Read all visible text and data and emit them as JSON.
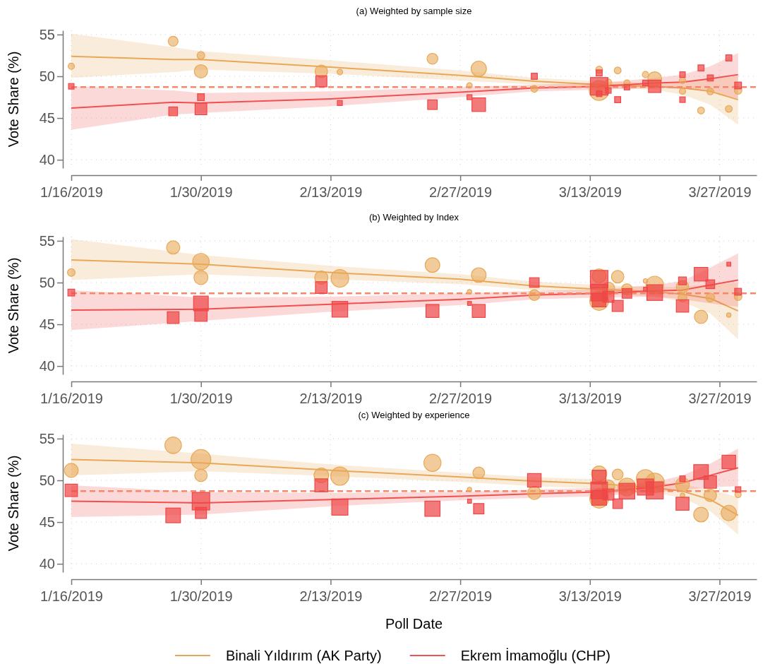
{
  "chart_data": [
    {
      "type": "line",
      "title": "(a) Weighted by sample size",
      "ylabel": "Vote Share (%)",
      "xlim": [
        "2019-01-16",
        "2019-03-31"
      ],
      "ylim": [
        39,
        55.5
      ],
      "xticks": [
        {
          "value": "2019-01-16",
          "label": "1/16/2019"
        },
        {
          "value": "2019-01-30",
          "label": "1/30/2019"
        },
        {
          "value": "2019-02-13",
          "label": "2/13/2019"
        },
        {
          "value": "2019-02-27",
          "label": "2/27/2019"
        },
        {
          "value": "2019-03-13",
          "label": "3/13/2019"
        },
        {
          "value": "2019-03-27",
          "label": "3/27/2019"
        }
      ],
      "yticks": [
        40,
        45,
        50,
        55
      ],
      "grid": true,
      "ref_lines": [
        {
          "axis": "y",
          "value": 48.7,
          "color": "#f5876a",
          "line_style": "dashed"
        }
      ],
      "series": [
        {
          "type": "line",
          "color": "#e8a857",
          "x": [
            "2019-01-16",
            "2019-01-27",
            "2019-01-30",
            "2019-02-13",
            "2019-02-27",
            "2019-03-07",
            "2019-03-14",
            "2019-03-20",
            "2019-03-23",
            "2019-03-26",
            "2019-03-29"
          ],
          "values": [
            52.4,
            52.0,
            52.0,
            51.1,
            50.1,
            49.4,
            49.0,
            48.8,
            48.6,
            48.2,
            47.2
          ],
          "lower": [
            49.8,
            50.5,
            50.8,
            50.3,
            49.5,
            49.0,
            48.6,
            48.4,
            47.8,
            46.6,
            44.2
          ],
          "upper": [
            55.1,
            53.5,
            53.0,
            51.9,
            50.7,
            49.8,
            49.4,
            49.2,
            49.3,
            49.6,
            50.2
          ]
        },
        {
          "type": "line",
          "color": "#f25050",
          "x": [
            "2019-01-16",
            "2019-01-27",
            "2019-01-30",
            "2019-02-13",
            "2019-02-27",
            "2019-03-07",
            "2019-03-14",
            "2019-03-20",
            "2019-03-23",
            "2019-03-26",
            "2019-03-29"
          ],
          "values": [
            46.2,
            46.9,
            46.8,
            47.3,
            48.1,
            48.6,
            48.8,
            49.2,
            49.3,
            49.7,
            50.2
          ],
          "lower": [
            43.6,
            45.4,
            45.6,
            46.4,
            47.5,
            48.2,
            48.4,
            48.6,
            48.5,
            48.3,
            47.3
          ],
          "upper": [
            48.8,
            48.3,
            48.0,
            48.2,
            48.7,
            49.0,
            49.2,
            49.8,
            50.2,
            51.2,
            52.8
          ]
        },
        {
          "type": "bubble",
          "marker": "circle",
          "color": "#e8a857",
          "x": [
            "2019-01-16",
            "2019-01-27",
            "2019-01-30",
            "2019-01-30",
            "2019-02-12",
            "2019-02-14",
            "2019-02-24",
            "2019-02-28",
            "2019-03-01",
            "2019-03-07",
            "2019-03-14",
            "2019-03-14",
            "2019-03-14",
            "2019-03-15",
            "2019-03-16",
            "2019-03-17",
            "2019-03-19",
            "2019-03-20",
            "2019-03-23",
            "2019-03-23",
            "2019-03-25",
            "2019-03-26",
            "2019-03-28",
            "2019-03-29"
          ],
          "values": [
            51.2,
            54.2,
            52.5,
            50.6,
            50.6,
            50.5,
            52.1,
            48.9,
            50.9,
            48.5,
            48.3,
            50.8,
            48.0,
            49.3,
            50.7,
            49.2,
            50.2,
            49.7,
            49.5,
            48.2,
            45.9,
            48.2,
            46.1,
            48.3
          ],
          "sizes": [
            0.1,
            0.25,
            0.15,
            0.45,
            0.4,
            0.08,
            0.3,
            0.08,
            0.6,
            0.12,
            1,
            0.12,
            0.1,
            0.1,
            0.12,
            0.1,
            0.1,
            0.5,
            0.1,
            0.1,
            0.12,
            0.12,
            0.12,
            0.15
          ]
        },
        {
          "type": "bubble",
          "marker": "square",
          "color": "#ee4646",
          "x": [
            "2019-01-16",
            "2019-01-27",
            "2019-01-30",
            "2019-01-30",
            "2019-02-12",
            "2019-02-14",
            "2019-02-24",
            "2019-02-28",
            "2019-03-01",
            "2019-03-07",
            "2019-03-14",
            "2019-03-14",
            "2019-03-14",
            "2019-03-15",
            "2019-03-16",
            "2019-03-17",
            "2019-03-19",
            "2019-03-20",
            "2019-03-23",
            "2019-03-23",
            "2019-03-25",
            "2019-03-26",
            "2019-03-28",
            "2019-03-29"
          ],
          "values": [
            48.8,
            45.8,
            47.5,
            46.1,
            49.4,
            46.8,
            46.6,
            47.5,
            46.6,
            50.0,
            48.8,
            50.4,
            47.9,
            48.3,
            47.2,
            48.7,
            49.2,
            48.8,
            50.2,
            47.2,
            51.0,
            49.8,
            52.2,
            48.9
          ],
          "sizes": [
            0.1,
            0.25,
            0.15,
            0.45,
            0.4,
            0.08,
            0.3,
            0.08,
            0.6,
            0.12,
            1,
            0.12,
            0.1,
            0.1,
            0.12,
            0.1,
            0.1,
            0.5,
            0.1,
            0.1,
            0.12,
            0.12,
            0.12,
            0.15
          ]
        }
      ]
    },
    {
      "type": "line",
      "title": "(b) Weighted by Index",
      "ylabel": "Vote Share (%)",
      "xlim": [
        "2019-01-16",
        "2019-03-31"
      ],
      "ylim": [
        39,
        55.5
      ],
      "xticks": [
        {
          "value": "2019-01-16",
          "label": "1/16/2019"
        },
        {
          "value": "2019-01-30",
          "label": "1/30/2019"
        },
        {
          "value": "2019-02-13",
          "label": "2/13/2019"
        },
        {
          "value": "2019-02-27",
          "label": "2/27/2019"
        },
        {
          "value": "2019-03-13",
          "label": "3/13/2019"
        },
        {
          "value": "2019-03-27",
          "label": "3/27/2019"
        }
      ],
      "yticks": [
        40,
        45,
        50,
        55
      ],
      "grid": true,
      "ref_lines": [
        {
          "axis": "y",
          "value": 48.7,
          "color": "#f5876a",
          "line_style": "dashed"
        }
      ],
      "series": [
        {
          "type": "line",
          "color": "#e8a857",
          "x": [
            "2019-01-16",
            "2019-01-30",
            "2019-02-13",
            "2019-02-27",
            "2019-03-07",
            "2019-03-14",
            "2019-03-20",
            "2019-03-23",
            "2019-03-26",
            "2019-03-29"
          ],
          "values": [
            52.7,
            52.2,
            51.2,
            50.4,
            49.6,
            49.2,
            48.9,
            48.6,
            48.1,
            46.6
          ],
          "lower": [
            50.3,
            51.0,
            50.4,
            49.8,
            49.1,
            48.7,
            48.3,
            47.7,
            46.3,
            43.2
          ],
          "upper": [
            55.2,
            53.3,
            52.0,
            51.0,
            50.1,
            49.7,
            49.5,
            49.5,
            49.8,
            50.0
          ]
        },
        {
          "type": "line",
          "color": "#f25050",
          "x": [
            "2019-01-16",
            "2019-01-30",
            "2019-02-13",
            "2019-02-27",
            "2019-03-07",
            "2019-03-14",
            "2019-03-20",
            "2019-03-23",
            "2019-03-26",
            "2019-03-29"
          ],
          "values": [
            46.7,
            46.8,
            47.4,
            48.0,
            48.5,
            48.7,
            49.0,
            49.1,
            49.7,
            50.3
          ],
          "lower": [
            44.3,
            45.4,
            46.5,
            47.3,
            48.0,
            48.2,
            48.3,
            48.0,
            47.5,
            47.1
          ],
          "upper": [
            49.1,
            48.2,
            48.3,
            48.7,
            49.0,
            49.2,
            49.7,
            50.2,
            51.8,
            53.5
          ]
        },
        {
          "type": "bubble",
          "marker": "circle",
          "color": "#e8a857",
          "x": [
            "2019-01-16",
            "2019-01-27",
            "2019-01-30",
            "2019-01-30",
            "2019-02-12",
            "2019-02-14",
            "2019-02-24",
            "2019-02-28",
            "2019-03-01",
            "2019-03-07",
            "2019-03-14",
            "2019-03-14",
            "2019-03-14",
            "2019-03-15",
            "2019-03-16",
            "2019-03-17",
            "2019-03-19",
            "2019-03-20",
            "2019-03-23",
            "2019-03-23",
            "2019-03-25",
            "2019-03-26",
            "2019-03-28",
            "2019-03-29"
          ],
          "values": [
            51.2,
            54.2,
            52.5,
            50.6,
            50.6,
            50.5,
            52.1,
            48.9,
            50.9,
            48.5,
            47.8,
            50.8,
            48.0,
            49.3,
            50.7,
            49.2,
            50.2,
            49.7,
            49.5,
            48.2,
            45.9,
            48.2,
            46.1,
            48.3
          ],
          "sizes": [
            0.15,
            0.45,
            0.7,
            0.5,
            0.45,
            0.8,
            0.55,
            0.05,
            0.55,
            0.3,
            0.9,
            0.5,
            0.6,
            0.4,
            0.4,
            0.3,
            0.05,
            0.8,
            0.4,
            0.2,
            0.45,
            0.2,
            0.05,
            0.15
          ]
        },
        {
          "type": "bubble",
          "marker": "square",
          "color": "#ee4646",
          "x": [
            "2019-01-16",
            "2019-01-27",
            "2019-01-30",
            "2019-01-30",
            "2019-02-12",
            "2019-02-14",
            "2019-02-24",
            "2019-02-28",
            "2019-03-01",
            "2019-03-07",
            "2019-03-14",
            "2019-03-14",
            "2019-03-14",
            "2019-03-15",
            "2019-03-16",
            "2019-03-17",
            "2019-03-19",
            "2019-03-20",
            "2019-03-23",
            "2019-03-23",
            "2019-03-25",
            "2019-03-26",
            "2019-03-28",
            "2019-03-29"
          ],
          "values": [
            48.8,
            45.8,
            47.5,
            46.1,
            49.4,
            46.8,
            46.6,
            47.5,
            46.6,
            50.0,
            48.8,
            50.4,
            47.9,
            48.3,
            47.2,
            48.7,
            49.2,
            48.8,
            50.2,
            47.2,
            51.0,
            49.8,
            52.2,
            48.9
          ],
          "sizes": [
            0.15,
            0.45,
            0.7,
            0.5,
            0.45,
            0.8,
            0.55,
            0.05,
            0.55,
            0.3,
            0.9,
            1,
            0.6,
            0.4,
            0.4,
            0.3,
            0.05,
            0.8,
            0.2,
            0.5,
            0.6,
            0.25,
            0.05,
            0.15
          ]
        }
      ]
    },
    {
      "type": "line",
      "title": "(c) Weighted by experience",
      "xlabel": "Poll Date",
      "ylabel": "Vote Share (%)",
      "legend": "bottom",
      "xlim": [
        "2019-01-16",
        "2019-03-31"
      ],
      "ylim": [
        39,
        55.5
      ],
      "xticks": [
        {
          "value": "2019-01-16",
          "label": "1/16/2019"
        },
        {
          "value": "2019-01-30",
          "label": "1/30/2019"
        },
        {
          "value": "2019-02-13",
          "label": "2/13/2019"
        },
        {
          "value": "2019-02-27",
          "label": "2/27/2019"
        },
        {
          "value": "2019-03-13",
          "label": "3/13/2019"
        },
        {
          "value": "2019-03-27",
          "label": "3/27/2019"
        }
      ],
      "yticks": [
        40,
        45,
        50,
        55
      ],
      "grid": true,
      "ref_lines": [
        {
          "axis": "y",
          "value": 48.7,
          "color": "#f5876a",
          "line_style": "dashed"
        }
      ],
      "series": [
        {
          "type": "line",
          "name": "Binali Yıldırım (AK Party)",
          "color": "#e8a857",
          "x": [
            "2019-01-16",
            "2019-01-30",
            "2019-02-13",
            "2019-02-27",
            "2019-03-07",
            "2019-03-14",
            "2019-03-20",
            "2019-03-23",
            "2019-03-26",
            "2019-03-29"
          ],
          "values": [
            52.5,
            52.1,
            51.2,
            50.4,
            49.9,
            49.6,
            49.1,
            48.7,
            47.7,
            45.8
          ],
          "lower": [
            50.6,
            51.1,
            50.5,
            49.8,
            49.3,
            49.0,
            48.5,
            47.9,
            46.3,
            43.5
          ],
          "upper": [
            54.4,
            53.2,
            51.9,
            50.9,
            50.4,
            50.1,
            49.7,
            49.5,
            48.9,
            48.0
          ]
        },
        {
          "type": "line",
          "name": "Ekrem İmamoğlu (CHP)",
          "color": "#f25050",
          "x": [
            "2019-01-16",
            "2019-01-30",
            "2019-02-13",
            "2019-02-27",
            "2019-03-07",
            "2019-03-14",
            "2019-03-20",
            "2019-03-23",
            "2019-03-26",
            "2019-03-29"
          ],
          "values": [
            47.5,
            47.3,
            47.7,
            48.1,
            48.4,
            48.6,
            49.2,
            49.7,
            50.6,
            51.5
          ],
          "lower": [
            45.6,
            45.9,
            46.9,
            47.6,
            47.9,
            48.1,
            48.6,
            48.8,
            49.2,
            49.3
          ],
          "upper": [
            49.4,
            48.6,
            48.5,
            48.6,
            48.9,
            49.1,
            49.8,
            50.6,
            52.0,
            53.8
          ]
        },
        {
          "type": "bubble",
          "marker": "circle",
          "color": "#e8a857",
          "x": [
            "2019-01-16",
            "2019-01-27",
            "2019-01-30",
            "2019-01-30",
            "2019-02-12",
            "2019-02-14",
            "2019-02-24",
            "2019-02-28",
            "2019-03-01",
            "2019-03-07",
            "2019-03-14",
            "2019-03-14",
            "2019-03-14",
            "2019-03-15",
            "2019-03-16",
            "2019-03-17",
            "2019-03-19",
            "2019-03-20",
            "2019-03-23",
            "2019-03-23",
            "2019-03-25",
            "2019-03-26",
            "2019-03-28",
            "2019-03-29"
          ],
          "values": [
            51.2,
            54.2,
            52.5,
            50.6,
            50.6,
            50.5,
            52.1,
            48.9,
            50.9,
            48.5,
            47.8,
            50.8,
            48.0,
            49.3,
            50.7,
            49.2,
            50.2,
            49.7,
            49.5,
            48.2,
            45.9,
            48.2,
            46.1,
            48.3
          ],
          "sizes": [
            0.5,
            0.7,
            1,
            0.4,
            0.55,
            0.85,
            0.75,
            0.05,
            0.35,
            0.45,
            0.9,
            0.6,
            0.7,
            0.4,
            0.3,
            0.8,
            0.85,
            0.95,
            0.5,
            0.05,
            0.55,
            0.4,
            0.6,
            0.1
          ]
        },
        {
          "type": "bubble",
          "marker": "square",
          "color": "#ee4646",
          "x": [
            "2019-01-16",
            "2019-01-27",
            "2019-01-30",
            "2019-01-30",
            "2019-02-12",
            "2019-02-14",
            "2019-02-24",
            "2019-02-28",
            "2019-03-01",
            "2019-03-07",
            "2019-03-14",
            "2019-03-14",
            "2019-03-14",
            "2019-03-15",
            "2019-03-16",
            "2019-03-17",
            "2019-03-19",
            "2019-03-20",
            "2019-03-23",
            "2019-03-23",
            "2019-03-25",
            "2019-03-26",
            "2019-03-28",
            "2019-03-29"
          ],
          "values": [
            48.8,
            45.8,
            47.5,
            46.1,
            49.4,
            46.8,
            46.6,
            47.5,
            46.6,
            50.0,
            48.8,
            50.4,
            47.9,
            48.3,
            47.2,
            48.7,
            49.2,
            48.8,
            50.2,
            47.2,
            51.0,
            49.8,
            52.2,
            48.9
          ],
          "sizes": [
            0.5,
            0.7,
            1,
            0.4,
            0.55,
            0.85,
            0.75,
            0.05,
            0.35,
            0.6,
            0.9,
            0.6,
            0.7,
            0.4,
            0.3,
            0.8,
            0.85,
            0.95,
            0.1,
            0.55,
            0.7,
            0.5,
            0.6,
            0.1
          ]
        }
      ]
    }
  ]
}
